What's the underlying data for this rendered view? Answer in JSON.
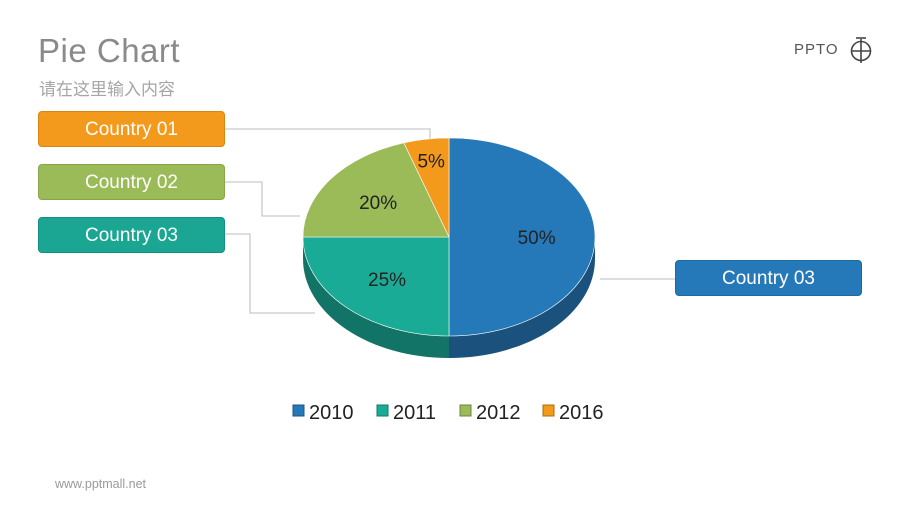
{
  "slide": {
    "title": "Pie Chart",
    "subtitle": "请在这里输入内容",
    "footer": "www.pptmall.net",
    "logo_text": "PPTO"
  },
  "callouts": [
    {
      "label": "Country 01",
      "color": "#f39a1c"
    },
    {
      "label": "Country 02",
      "color": "#9bbb59"
    },
    {
      "label": "Country 03",
      "color": "#1aa693"
    },
    {
      "label": "Country 03",
      "color": "#2679b8"
    }
  ],
  "chart_data": {
    "type": "pie",
    "title": "",
    "legend_position": "bottom",
    "slices": [
      {
        "name": "2010",
        "value": 50,
        "label": "50%",
        "color": "#2679b8"
      },
      {
        "name": "2011",
        "value": 25,
        "label": "25%",
        "color": "#1aab96"
      },
      {
        "name": "2012",
        "value": 20,
        "label": "20%",
        "color": "#9bbb59"
      },
      {
        "name": "2016",
        "value": 5,
        "label": "5%",
        "color": "#f39a1c"
      }
    ]
  }
}
